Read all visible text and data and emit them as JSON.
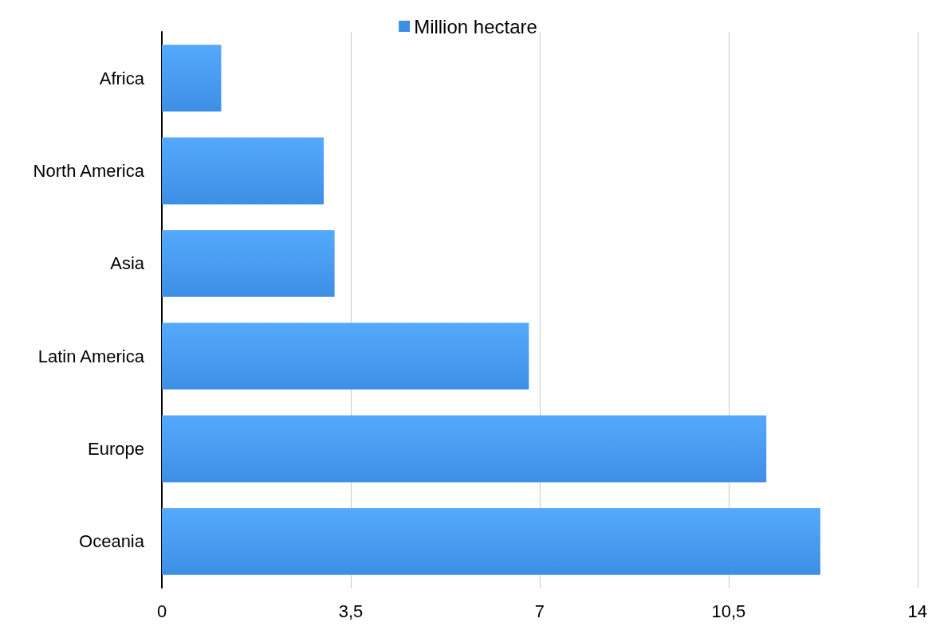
{
  "chart_data": {
    "type": "bar",
    "orientation": "horizontal",
    "categories": [
      "Africa",
      "North America",
      "Asia",
      "Latin America",
      "Europe",
      "Oceania"
    ],
    "series": [
      {
        "name": "Million hectare",
        "color": "#3d8fe6",
        "values": [
          1.1,
          3.0,
          3.2,
          6.8,
          11.2,
          12.2
        ]
      }
    ],
    "xlim": [
      0,
      14
    ],
    "xticks": [
      0,
      {
        "value": 3.5,
        "label": "3,5"
      },
      7,
      {
        "value": 10.5,
        "label": "10,5"
      },
      14
    ],
    "grid": "x",
    "legend": "top"
  }
}
